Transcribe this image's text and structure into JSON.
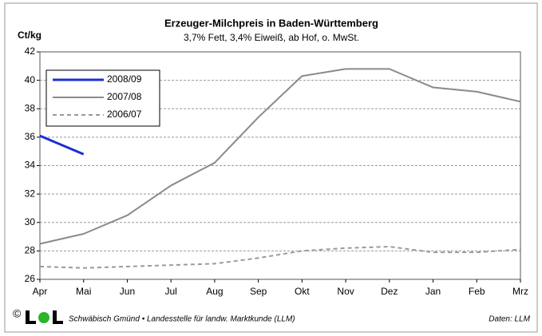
{
  "chart_data": {
    "type": "line",
    "title": "Erzeuger-Milchpreis in Baden-Württemberg",
    "subtitle": "3,7% Fett, 3,4% Eiweiß, ab Hof, o. MwSt.",
    "y_label": "Ct/kg",
    "categories": [
      "Apr",
      "Mai",
      "Jun",
      "Jul",
      "Aug",
      "Sep",
      "Okt",
      "Nov",
      "Dez",
      "Jan",
      "Feb",
      "Mrz"
    ],
    "series": [
      {
        "name": "2008/09",
        "color": "#1a2fd6",
        "width": 3,
        "dashed": false,
        "values": [
          36.1,
          34.8,
          null,
          null,
          null,
          null,
          null,
          null,
          null,
          null,
          null,
          null
        ]
      },
      {
        "name": "2007/08",
        "color": "#8a8a8a",
        "width": 2,
        "dashed": false,
        "values": [
          28.5,
          29.2,
          30.5,
          32.6,
          34.2,
          37.4,
          40.3,
          40.8,
          40.8,
          39.5,
          39.2,
          38.5
        ]
      },
      {
        "name": "2006/07",
        "color": "#9a9a9a",
        "width": 2,
        "dashed": true,
        "values": [
          26.9,
          26.8,
          26.9,
          27.0,
          27.1,
          27.5,
          28.0,
          28.2,
          28.3,
          27.9,
          27.9,
          28.1
        ]
      }
    ],
    "ylim": [
      26,
      42
    ],
    "yticks": [
      26,
      28,
      30,
      32,
      34,
      36,
      38,
      40,
      42
    ],
    "grid": true,
    "legend": "upper left",
    "copyright": "©",
    "footer": "Schwäbisch Gmünd • Landesstelle für landw. Marktkunde (LLM)",
    "source": "Daten: LLM"
  }
}
